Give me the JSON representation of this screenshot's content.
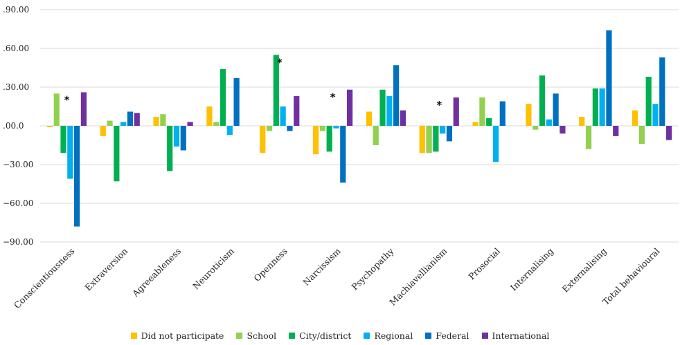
{
  "chart_data": {
    "type": "bar",
    "categories": [
      "Conscientiousness",
      "Extraversion",
      "Agreeableness",
      "Neuroticism",
      "Openness",
      "Narcissism",
      "Psychopathy",
      "Machiavellianism",
      "Prosocial",
      "Internalising",
      "Externalising",
      "Total behavioural"
    ],
    "series": [
      {
        "name": "Did not participate",
        "color": "#FFC000",
        "values": [
          -1,
          -8,
          7,
          15,
          -21,
          -22,
          11,
          -21,
          3,
          17,
          7,
          12
        ]
      },
      {
        "name": "School",
        "color": "#92D050",
        "values": [
          25,
          4,
          9,
          3,
          -4,
          -4,
          -15,
          -21,
          22,
          -3,
          -18,
          -14
        ]
      },
      {
        "name": "City/district",
        "color": "#00B050",
        "values": [
          -21,
          -43,
          -35,
          44,
          55,
          -20,
          28,
          -20,
          6,
          39,
          29,
          38
        ]
      },
      {
        "name": "Regional",
        "color": "#00B0F0",
        "values": [
          -41,
          3,
          -16,
          -7,
          15,
          -2,
          23,
          -6,
          -28,
          5,
          29,
          17
        ]
      },
      {
        "name": "Federal",
        "color": "#0070C0",
        "values": [
          -78,
          11,
          -19,
          37,
          -4,
          -44,
          47,
          -12,
          19,
          25,
          74,
          53
        ]
      },
      {
        "name": "International",
        "color": "#7030A0",
        "values": [
          26,
          10,
          3,
          null,
          23,
          28,
          12,
          22,
          null,
          -6,
          -8,
          -11
        ]
      }
    ],
    "ylim": [
      -90,
      90
    ],
    "yticks": [
      -90,
      -60,
      -30,
      0,
      30,
      60,
      90
    ],
    "ytick_labels": [
      "−90.00",
      "−60.00",
      "−30.00",
      ".00.0",
      ".30.00",
      ".60.00",
      ".90.00"
    ],
    "annotations": [
      {
        "category": "Conscientiousness",
        "text": "*"
      },
      {
        "category": "Openness",
        "text": "*"
      },
      {
        "category": "Narcissism",
        "text": "*"
      },
      {
        "category": "Machiavellianism",
        "text": "*"
      }
    ],
    "grid": true,
    "legend_position": "bottom"
  }
}
